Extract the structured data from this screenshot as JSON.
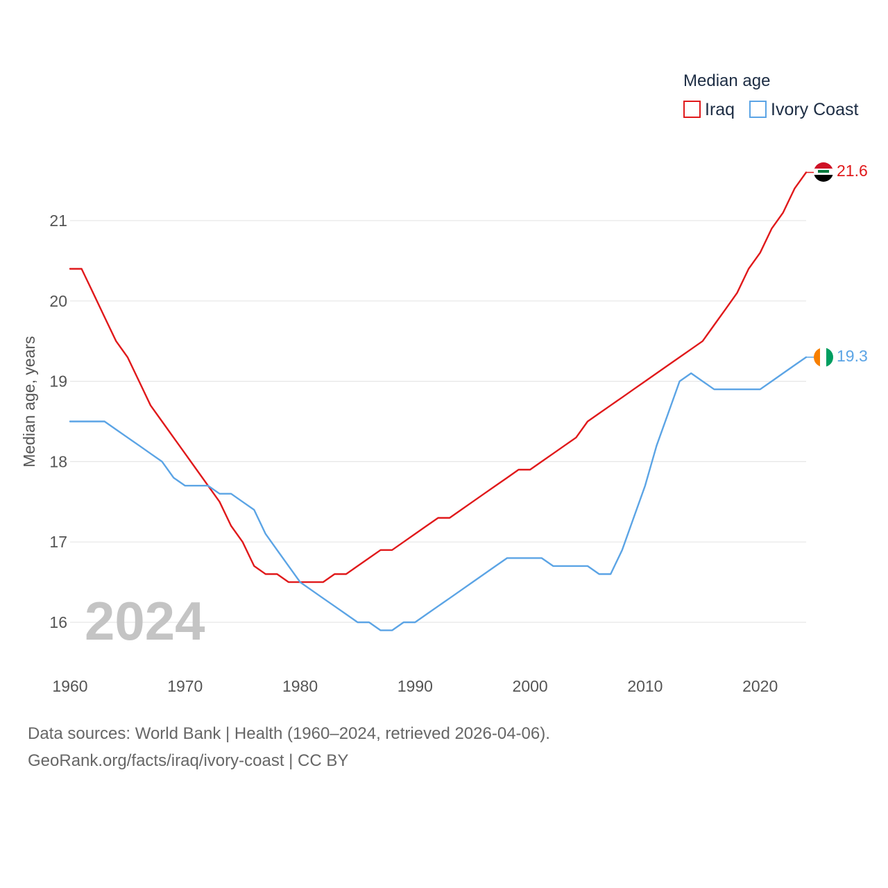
{
  "chart_data": {
    "type": "line",
    "title": "",
    "xlabel": "",
    "ylabel": "Median age, years",
    "xlim": [
      1960,
      2024
    ],
    "ylim": [
      15.5,
      22
    ],
    "x_ticks": [
      1960,
      1970,
      1980,
      1990,
      2000,
      2010,
      2020
    ],
    "y_ticks": [
      16,
      17,
      18,
      19,
      20,
      21
    ],
    "legend_title": "Median age",
    "legend_position": "top-right",
    "year_watermark": "2024",
    "grid": true,
    "x": [
      1960,
      1961,
      1962,
      1963,
      1964,
      1965,
      1966,
      1967,
      1968,
      1969,
      1970,
      1971,
      1972,
      1973,
      1974,
      1975,
      1976,
      1977,
      1978,
      1979,
      1980,
      1981,
      1982,
      1983,
      1984,
      1985,
      1986,
      1987,
      1988,
      1989,
      1990,
      1991,
      1992,
      1993,
      1994,
      1995,
      1996,
      1997,
      1998,
      1999,
      2000,
      2001,
      2002,
      2003,
      2004,
      2005,
      2006,
      2007,
      2008,
      2009,
      2010,
      2011,
      2012,
      2013,
      2014,
      2015,
      2016,
      2017,
      2018,
      2019,
      2020,
      2021,
      2022,
      2023,
      2024
    ],
    "series": [
      {
        "name": "Iraq",
        "color": "#e0191b",
        "end_label": "21.6",
        "flag": "iraq-flag",
        "values": [
          20.4,
          20.4,
          20.1,
          19.8,
          19.5,
          19.3,
          19.0,
          18.7,
          18.5,
          18.3,
          18.1,
          17.9,
          17.7,
          17.5,
          17.2,
          17.0,
          16.7,
          16.6,
          16.6,
          16.5,
          16.5,
          16.5,
          16.5,
          16.6,
          16.6,
          16.7,
          16.8,
          16.9,
          16.9,
          17.0,
          17.1,
          17.2,
          17.3,
          17.3,
          17.4,
          17.5,
          17.6,
          17.7,
          17.8,
          17.9,
          17.9,
          18.0,
          18.1,
          18.2,
          18.3,
          18.5,
          18.6,
          18.7,
          18.8,
          18.9,
          19.0,
          19.1,
          19.2,
          19.3,
          19.4,
          19.5,
          19.7,
          19.9,
          20.1,
          20.4,
          20.6,
          20.9,
          21.1,
          21.4,
          21.6
        ]
      },
      {
        "name": "Ivory Coast",
        "color": "#5ba4e5",
        "end_label": "19.3",
        "flag": "ivory-coast-flag",
        "values": [
          18.5,
          18.5,
          18.5,
          18.5,
          18.4,
          18.3,
          18.2,
          18.1,
          18.0,
          17.8,
          17.7,
          17.7,
          17.7,
          17.6,
          17.6,
          17.5,
          17.4,
          17.1,
          16.9,
          16.7,
          16.5,
          16.4,
          16.3,
          16.2,
          16.1,
          16.0,
          16.0,
          15.9,
          15.9,
          16.0,
          16.0,
          16.1,
          16.2,
          16.3,
          16.4,
          16.5,
          16.6,
          16.7,
          16.8,
          16.8,
          16.8,
          16.8,
          16.7,
          16.7,
          16.7,
          16.7,
          16.6,
          16.6,
          16.9,
          17.3,
          17.7,
          18.2,
          18.6,
          19.0,
          19.1,
          19.0,
          18.9,
          18.9,
          18.9,
          18.9,
          18.9,
          19.0,
          19.1,
          19.2,
          19.3
        ]
      }
    ]
  },
  "footer": {
    "sources": "Data sources: World Bank | Health (1960–2024, retrieved 2026-04-06).",
    "credit": "GeoRank.org/facts/iraq/ivory-coast | CC BY"
  }
}
